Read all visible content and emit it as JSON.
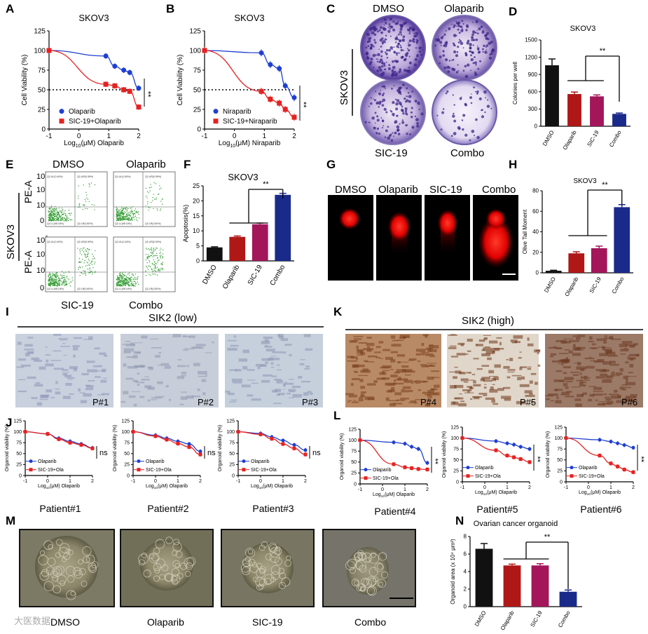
{
  "panels": {
    "A": {
      "letter": "A",
      "title": "SKOV3"
    },
    "B": {
      "letter": "B",
      "title": "SKOV3"
    },
    "C": {
      "letter": "C",
      "cell_line": "SKOV3",
      "labels": [
        "DMSO",
        "Olaparib",
        "SIC-19",
        "Combo"
      ]
    },
    "D": {
      "letter": "D"
    },
    "E": {
      "letter": "E",
      "cell_line": "SKOV3",
      "labels": [
        "DMSO",
        "Olaparib",
        "SIC-19",
        "Combo"
      ],
      "axis_label": "PE-A",
      "quad_texts": [
        "Q2-UL(0.45%)",
        "Q2-UR(0.59%)",
        "Q2-LL(98.16%)",
        "Q2-LR(0.80%)"
      ]
    },
    "F": {
      "letter": "F"
    },
    "G": {
      "letter": "G",
      "labels": [
        "DMSO",
        "Olaparib",
        "SIC-19",
        "Combo"
      ]
    },
    "H": {
      "letter": "H"
    },
    "I": {
      "letter": "I",
      "group": "SIK2 (low)",
      "patients": [
        "P#1",
        "P#2",
        "P#3"
      ]
    },
    "K": {
      "letter": "K",
      "group": "SIK2 (high)",
      "patients": [
        "P#4",
        "P#5",
        "P#6"
      ]
    },
    "J": {
      "letter": "J"
    },
    "L": {
      "letter": "L"
    },
    "M": {
      "letter": "M",
      "labels": [
        "DMSO",
        "Olaparib",
        "SIC-19",
        "Combo"
      ]
    },
    "N": {
      "letter": "N"
    }
  },
  "watermark": "大医数据",
  "chart_data": [
    {
      "id": "A",
      "type": "line",
      "title": "SKOV3",
      "xlabel": "Log10(μM) Olaparib",
      "ylabel": "Cell Viability (%)",
      "xlim": [
        -1,
        2
      ],
      "ylim": [
        0,
        125
      ],
      "xticks": [
        -1,
        0,
        1,
        2
      ],
      "yticks": [
        0,
        25,
        50,
        75,
        100,
        125
      ],
      "ref_line": 50,
      "significance": "**",
      "series": [
        {
          "name": "Olaparib",
          "color": "#1f3fd0",
          "marker": "circle",
          "x": [
            -1,
            0.9,
            1.2,
            1.5,
            1.7,
            2
          ],
          "y": [
            100,
            93,
            80,
            75,
            72,
            52
          ]
        },
        {
          "name": "SIC-19+Olaparib",
          "color": "#e52222",
          "marker": "square",
          "x": [
            -1,
            0.9,
            1.2,
            1.5,
            1.7,
            2
          ],
          "y": [
            100,
            57,
            55,
            50,
            48,
            28
          ]
        }
      ]
    },
    {
      "id": "B",
      "type": "line",
      "title": "SKOV3",
      "xlabel": "Log10(μM) Niraparib",
      "ylabel": "Cell Viability (%)",
      "xlim": [
        -1,
        2
      ],
      "ylim": [
        0,
        125
      ],
      "xticks": [
        -1,
        0,
        1,
        2
      ],
      "yticks": [
        0,
        25,
        50,
        75,
        100,
        125
      ],
      "ref_line": 50,
      "significance": "**",
      "series": [
        {
          "name": "Niraparib",
          "color": "#1f3fd0",
          "marker": "circle",
          "x": [
            -1,
            0.9,
            1.2,
            1.5,
            1.7,
            2
          ],
          "y": [
            100,
            97,
            82,
            77,
            55,
            40
          ]
        },
        {
          "name": "SIC-19+Niraparib",
          "color": "#e52222",
          "marker": "square",
          "x": [
            -1,
            0.9,
            1.2,
            1.5,
            1.7,
            2
          ],
          "y": [
            100,
            48,
            38,
            33,
            25,
            15
          ]
        }
      ]
    },
    {
      "id": "D",
      "type": "bar",
      "title": "SKOV3",
      "ylabel": "Colonies per well",
      "ylim": [
        0,
        1500
      ],
      "yticks": [
        0,
        300,
        600,
        900,
        1200,
        1500
      ],
      "categories": [
        "DMSO",
        "Olaparib",
        "SIC-19",
        "Combo"
      ],
      "values": [
        1060,
        560,
        520,
        215
      ],
      "errors": [
        110,
        35,
        25,
        15
      ],
      "colors": [
        "#111111",
        "#b01818",
        "#a3165a",
        "#1a2a8a"
      ],
      "significance": "**"
    },
    {
      "id": "F",
      "type": "bar",
      "title": "SKOV3",
      "ylabel": "Apoptosis(%)",
      "ylim": [
        0,
        25
      ],
      "yticks": [
        0,
        5,
        10,
        15,
        20,
        25
      ],
      "categories": [
        "DMSO",
        "Olaparib",
        "SIC-19",
        "Combo"
      ],
      "values": [
        4.5,
        8,
        12.2,
        22
      ],
      "errors": [
        0.2,
        0.3,
        0.4,
        0.5
      ],
      "colors": [
        "#111111",
        "#b01818",
        "#a3165a",
        "#1a2a8a"
      ],
      "significance": "**"
    },
    {
      "id": "H",
      "type": "bar",
      "title": "SKOV3",
      "ylabel": "Olive Tail Moment",
      "ylim": [
        0,
        80
      ],
      "yticks": [
        0,
        20,
        40,
        60,
        80
      ],
      "categories": [
        "DMSO",
        "Olaparib",
        "SIC-19",
        "Combo"
      ],
      "values": [
        2,
        19,
        24,
        64
      ],
      "errors": [
        0.5,
        1.5,
        2,
        2.5
      ],
      "colors": [
        "#111111",
        "#b01818",
        "#a3165a",
        "#1a2a8a"
      ],
      "significance": "**"
    },
    {
      "id": "J1",
      "type": "line",
      "caption": "Patient#1",
      "ylabel": "Organoid viability (%)",
      "xlabel": "Log10(μM) Olaparib",
      "xlim": [
        -1,
        2
      ],
      "ylim": [
        0,
        125
      ],
      "significance": "ns",
      "series": [
        {
          "name": "Olaparib",
          "color": "#1f3fd0",
          "x": [
            -1,
            0,
            0.5,
            1,
            1.5,
            2
          ],
          "y": [
            100,
            95,
            85,
            78,
            72,
            63
          ]
        },
        {
          "name": "SIC-19+Ola",
          "color": "#e52222",
          "x": [
            -1,
            0,
            0.5,
            1,
            1.5,
            2
          ],
          "y": [
            100,
            95,
            83,
            75,
            70,
            62
          ]
        }
      ]
    },
    {
      "id": "J2",
      "type": "line",
      "caption": "Patient#2",
      "ylabel": "Organoid viability (%)",
      "xlabel": "Log10(μM) Olaparib",
      "xlim": [
        -1,
        2
      ],
      "ylim": [
        0,
        125
      ],
      "significance": "ns",
      "series": [
        {
          "name": "Olaparib",
          "color": "#1f3fd0",
          "x": [
            -1,
            0,
            0.5,
            1,
            1.5,
            2
          ],
          "y": [
            100,
            92,
            85,
            78,
            72,
            55
          ]
        },
        {
          "name": "SIC-19+Ola",
          "color": "#e52222",
          "x": [
            -1,
            0,
            0.5,
            1,
            1.5,
            2
          ],
          "y": [
            100,
            90,
            82,
            73,
            65,
            48
          ]
        }
      ]
    },
    {
      "id": "J3",
      "type": "line",
      "caption": "Patient#3",
      "ylabel": "Organoid viability (%)",
      "xlabel": "Log10(μM) Olaparib",
      "xlim": [
        -1,
        2
      ],
      "ylim": [
        0,
        125
      ],
      "significance": "ns",
      "series": [
        {
          "name": "Olaparib",
          "color": "#1f3fd0",
          "x": [
            -1,
            0,
            0.5,
            1,
            1.5,
            2
          ],
          "y": [
            100,
            96,
            88,
            80,
            70,
            58
          ]
        },
        {
          "name": "SIC-19+Ola",
          "color": "#e52222",
          "x": [
            -1,
            0,
            0.5,
            1,
            1.5,
            2
          ],
          "y": [
            100,
            94,
            84,
            72,
            62,
            48
          ]
        }
      ]
    },
    {
      "id": "L1",
      "type": "line",
      "caption": "Patient#4",
      "ylabel": "Organoid viability (%)",
      "xlabel": "Log10(μM) Olaparib",
      "xlim": [
        -1,
        2
      ],
      "ylim": [
        0,
        125
      ],
      "significance": "**",
      "series": [
        {
          "name": "Olaparib",
          "color": "#1f3fd0",
          "x": [
            -1,
            0.5,
            1,
            1.3,
            1.6,
            2
          ],
          "y": [
            100,
            95,
            92,
            85,
            80,
            48
          ]
        },
        {
          "name": "SIC-19+Ola",
          "color": "#e52222",
          "x": [
            -1,
            0.5,
            1,
            1.3,
            1.6,
            2
          ],
          "y": [
            100,
            45,
            38,
            36,
            34,
            33
          ]
        }
      ]
    },
    {
      "id": "L2",
      "type": "line",
      "caption": "Patient#5",
      "ylabel": "Organoid viability (%)",
      "xlabel": "Log10(μM) Olaparib",
      "xlim": [
        -1,
        2
      ],
      "ylim": [
        0,
        125
      ],
      "significance": "**",
      "series": [
        {
          "name": "Olaparib",
          "color": "#1f3fd0",
          "x": [
            -1,
            0.5,
            1,
            1.3,
            1.6,
            2
          ],
          "y": [
            100,
            93,
            88,
            85,
            80,
            75
          ]
        },
        {
          "name": "SIC-19+Ola",
          "color": "#e52222",
          "x": [
            -1,
            0.5,
            1,
            1.3,
            1.6,
            2
          ],
          "y": [
            100,
            72,
            60,
            56,
            52,
            45
          ]
        }
      ]
    },
    {
      "id": "L3",
      "type": "line",
      "caption": "Patient#6",
      "ylabel": "Organoid viability (%)",
      "xlabel": "Log10(μM) Olaparib",
      "xlim": [
        -1,
        2
      ],
      "ylim": [
        0,
        125
      ],
      "significance": "**",
      "series": [
        {
          "name": "Olaparib",
          "color": "#1f3fd0",
          "x": [
            -1,
            0.5,
            1,
            1.3,
            1.6,
            2
          ],
          "y": [
            100,
            96,
            92,
            88,
            84,
            78
          ]
        },
        {
          "name": "SIC-19+Ola",
          "color": "#e52222",
          "x": [
            -1,
            0.5,
            1,
            1.3,
            1.6,
            2
          ],
          "y": [
            100,
            60,
            42,
            35,
            28,
            22
          ]
        }
      ]
    },
    {
      "id": "N",
      "type": "bar",
      "title": "Ovarian cancer organoid",
      "ylabel": "Organoid area (x 10⁴ μm²)",
      "ylim": [
        0,
        8
      ],
      "yticks": [
        0,
        2,
        4,
        6,
        8
      ],
      "categories": [
        "DMSO",
        "Olaparib",
        "SIC-19",
        "Combo"
      ],
      "values": [
        6.6,
        4.7,
        4.7,
        1.7
      ],
      "errors": [
        0.6,
        0.15,
        0.2,
        0.2
      ],
      "colors": [
        "#111111",
        "#b01818",
        "#a3165a",
        "#1a2a8a"
      ],
      "significance": "**"
    }
  ]
}
